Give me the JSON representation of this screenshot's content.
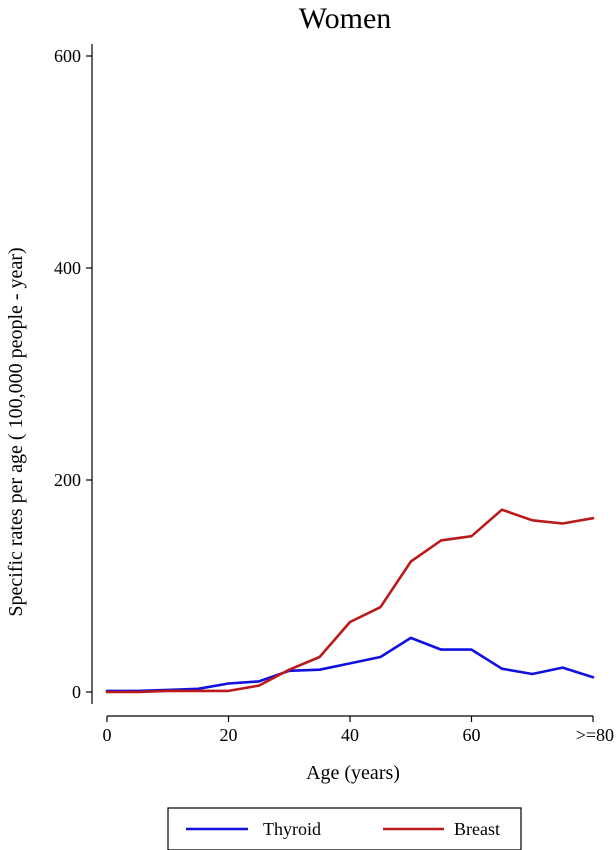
{
  "chart_data": {
    "type": "line",
    "title": "Women",
    "xlabel": "Age (years)",
    "ylabel": "Specific rates per age  ( 100,000  people - year)",
    "xlim": [
      0,
      80
    ],
    "ylim": [
      0,
      600
    ],
    "x_ticks": [
      {
        "value": 0,
        "label": "0"
      },
      {
        "value": 20,
        "label": "20"
      },
      {
        "value": 40,
        "label": "40"
      },
      {
        "value": 60,
        "label": "60"
      },
      {
        "value": 80,
        "label": ">=80"
      }
    ],
    "y_ticks": [
      {
        "value": 0,
        "label": "0"
      },
      {
        "value": 200,
        "label": "200"
      },
      {
        "value": 400,
        "label": "400"
      },
      {
        "value": 600,
        "label": "600"
      }
    ],
    "x": [
      0,
      5,
      10,
      15,
      20,
      25,
      30,
      35,
      40,
      45,
      50,
      55,
      60,
      65,
      70,
      75,
      80
    ],
    "series": [
      {
        "name": "Thyroid",
        "color": "#1010e0",
        "values": [
          1,
          1,
          2,
          3,
          8,
          10,
          20,
          21,
          27,
          33,
          51,
          40,
          40,
          22,
          17,
          23,
          14
        ]
      },
      {
        "name": "Breast",
        "color": "#bb1a1a",
        "values": [
          0,
          0,
          1,
          1,
          1,
          6,
          21,
          33,
          66,
          80,
          123,
          143,
          147,
          172,
          162,
          159,
          164
        ]
      }
    ],
    "grid": false,
    "legend": "bottom"
  }
}
